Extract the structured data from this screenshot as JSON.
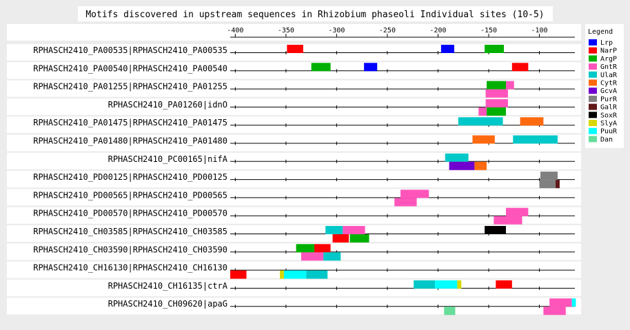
{
  "chart_data": {
    "type": "motif-map",
    "title": "Motifs discovered in upstream sequences in Rhizobium phaseoli Individual sites (10-5)",
    "legend_title": "Legend",
    "legend_position": "right",
    "xlim": [
      -405,
      -65
    ],
    "ticks": [
      -400,
      -350,
      -300,
      -250,
      -200,
      -150,
      -100
    ],
    "grid": false,
    "motifs": [
      {
        "name": "Lrp",
        "color": "#0000ff"
      },
      {
        "name": "NarP",
        "color": "#ff0000"
      },
      {
        "name": "ArgP",
        "color": "#00b000"
      },
      {
        "name": "GntR",
        "color": "#ff55bb"
      },
      {
        "name": "UlaR",
        "color": "#00c8c8"
      },
      {
        "name": "CytR",
        "color": "#ff6a10"
      },
      {
        "name": "GcvA",
        "color": "#7000d0"
      },
      {
        "name": "PurR",
        "color": "#808080"
      },
      {
        "name": "GalR",
        "color": "#601818"
      },
      {
        "name": "SoxR",
        "color": "#000000"
      },
      {
        "name": "SlyA",
        "color": "#d8d800"
      },
      {
        "name": "PuuR",
        "color": "#00ffff"
      },
      {
        "name": "Dan",
        "color": "#66dd99"
      }
    ],
    "rows": [
      {
        "label": "RPHASCH2410_PA00535|RPHASCH2410_PA00535",
        "sites": [
          {
            "motif": "NarP",
            "start": -349,
            "end": -333,
            "strand": "+"
          },
          {
            "motif": "Lrp",
            "start": -197,
            "end": -184,
            "strand": "+"
          },
          {
            "motif": "ArgP",
            "start": -154,
            "end": -135,
            "strand": "+"
          }
        ]
      },
      {
        "label": "RPHASCH2410_PA00540|RPHASCH2410_PA00540",
        "sites": [
          {
            "motif": "ArgP",
            "start": -325,
            "end": -306,
            "strand": "+"
          },
          {
            "motif": "Lrp",
            "start": -273,
            "end": -260,
            "strand": "+"
          },
          {
            "motif": "NarP",
            "start": -127,
            "end": -111,
            "strand": "+"
          }
        ]
      },
      {
        "label": "RPHASCH2410_PA01255|RPHASCH2410_PA01255",
        "sites": [
          {
            "motif": "ArgP",
            "start": -152,
            "end": -133,
            "strand": "+"
          },
          {
            "motif": "GntR",
            "start": -133,
            "end": -125,
            "strand": "+"
          },
          {
            "motif": "GntR",
            "start": -153,
            "end": -131,
            "strand": "-"
          }
        ]
      },
      {
        "label": "RPHASCH2410_PA01260|idnO",
        "sites": [
          {
            "motif": "GntR",
            "start": -153,
            "end": -131,
            "strand": "+"
          },
          {
            "motif": "GntR",
            "start": -160,
            "end": -152,
            "strand": "-"
          },
          {
            "motif": "ArgP",
            "start": -152,
            "end": -133,
            "strand": "-"
          }
        ]
      },
      {
        "label": "RPHASCH2410_PA01475|RPHASCH2410_PA01475",
        "sites": [
          {
            "motif": "UlaR",
            "start": -180,
            "end": -136,
            "strand": "+"
          },
          {
            "motif": "CytR",
            "start": -119,
            "end": -96,
            "strand": "+"
          }
        ]
      },
      {
        "label": "RPHASCH2410_PA01480|RPHASCH2410_PA01480",
        "sites": [
          {
            "motif": "CytR",
            "start": -166,
            "end": -144,
            "strand": "+"
          },
          {
            "motif": "UlaR",
            "start": -126,
            "end": -82,
            "strand": "+"
          }
        ]
      },
      {
        "label": "RPHASCH2410_PC00165|nifA",
        "sites": [
          {
            "motif": "UlaR",
            "start": -193,
            "end": -170,
            "strand": "+"
          },
          {
            "motif": "GcvA",
            "start": -189,
            "end": -164,
            "strand": "-"
          },
          {
            "motif": "CytR",
            "start": -164,
            "end": -152,
            "strand": "-"
          }
        ]
      },
      {
        "label": "RPHASCH2410_PD00125|RPHASCH2410_PD00125",
        "sites": [
          {
            "motif": "PurR",
            "start": -99,
            "end": -82,
            "strand": "+"
          },
          {
            "motif": "PurR",
            "start": -100,
            "end": -84,
            "strand": "-"
          },
          {
            "motif": "GalR",
            "start": -84,
            "end": -80,
            "strand": "-"
          }
        ]
      },
      {
        "label": "RPHASCH2410_PD00565|RPHASCH2410_PD00565",
        "sites": [
          {
            "motif": "GntR",
            "start": -237,
            "end": -209,
            "strand": "+"
          },
          {
            "motif": "GntR",
            "start": -243,
            "end": -221,
            "strand": "-"
          }
        ]
      },
      {
        "label": "RPHASCH2410_PD00570|RPHASCH2410_PD00570",
        "sites": [
          {
            "motif": "GntR",
            "start": -133,
            "end": -111,
            "strand": "+"
          },
          {
            "motif": "GntR",
            "start": -145,
            "end": -117,
            "strand": "-"
          }
        ]
      },
      {
        "label": "RPHASCH2410_CH03585|RPHASCH2410_CH03585",
        "sites": [
          {
            "motif": "UlaR",
            "start": -311,
            "end": -294,
            "strand": "+"
          },
          {
            "motif": "GntR",
            "start": -294,
            "end": -272,
            "strand": "+"
          },
          {
            "motif": "SoxR",
            "start": -154,
            "end": -133,
            "strand": "+"
          },
          {
            "motif": "NarP",
            "start": -304,
            "end": -288,
            "strand": "-"
          },
          {
            "motif": "ArgP",
            "start": -287,
            "end": -268,
            "strand": "-"
          }
        ]
      },
      {
        "label": "RPHASCH2410_CH03590|RPHASCH2410_CH03590",
        "sites": [
          {
            "motif": "ArgP",
            "start": -340,
            "end": -321,
            "strand": "+"
          },
          {
            "motif": "NarP",
            "start": -322,
            "end": -306,
            "strand": "+"
          },
          {
            "motif": "GntR",
            "start": -335,
            "end": -313,
            "strand": "-"
          },
          {
            "motif": "UlaR",
            "start": -313,
            "end": -296,
            "strand": "-"
          }
        ]
      },
      {
        "label": "RPHASCH2410_CH16130|RPHASCH2410_CH16130",
        "sites": [
          {
            "motif": "NarP",
            "start": -405,
            "end": -389,
            "strand": "-"
          },
          {
            "motif": "SlyA",
            "start": -356,
            "end": -352,
            "strand": "-"
          },
          {
            "motif": "PuuR",
            "start": -352,
            "end": -330,
            "strand": "-"
          },
          {
            "motif": "UlaR",
            "start": -330,
            "end": -309,
            "strand": "-"
          }
        ]
      },
      {
        "label": "RPHASCH2410_CH16135|ctrA",
        "sites": [
          {
            "motif": "UlaR",
            "start": -224,
            "end": -203,
            "strand": "+"
          },
          {
            "motif": "PuuR",
            "start": -203,
            "end": -181,
            "strand": "+"
          },
          {
            "motif": "SlyA",
            "start": -181,
            "end": -177,
            "strand": "+"
          },
          {
            "motif": "NarP",
            "start": -143,
            "end": -127,
            "strand": "+"
          }
        ]
      },
      {
        "label": "RPHASCH2410_CH09620|apaG",
        "sites": [
          {
            "motif": "GntR",
            "start": -90,
            "end": -68,
            "strand": "+"
          },
          {
            "motif": "PuuR",
            "start": -68,
            "end": -64,
            "strand": "+"
          },
          {
            "motif": "Dan",
            "start": -194,
            "end": -183,
            "strand": "-"
          },
          {
            "motif": "GntR",
            "start": -96,
            "end": -74,
            "strand": "-"
          }
        ]
      }
    ]
  }
}
